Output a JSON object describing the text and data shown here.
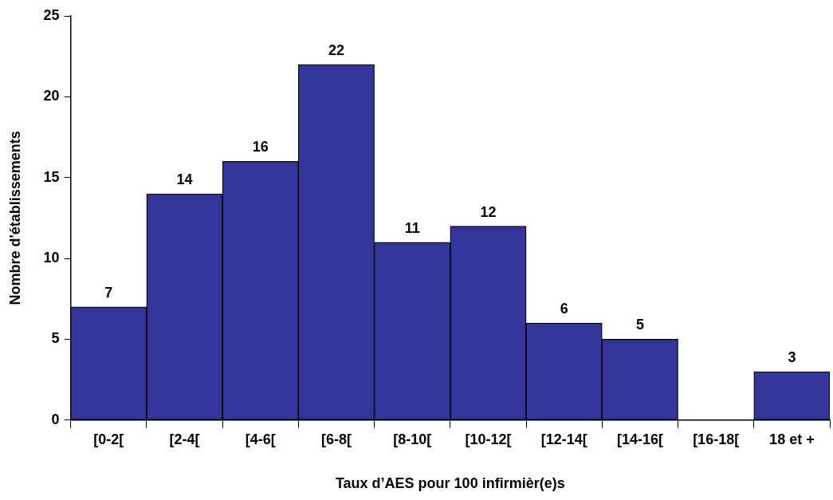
{
  "chart_data": {
    "type": "bar",
    "xlabel": "Taux d’AES pour 100 infirmièr(e)s",
    "ylabel": "Nombre d'établissements",
    "categories": [
      "[0-2[",
      "[2-4[",
      "[4-6[",
      "[6-8[",
      "[8-10[",
      "[10-12[",
      "[12-14[",
      "[14-16[",
      "[16-18[",
      "18 et +"
    ],
    "values": [
      7,
      14,
      16,
      22,
      11,
      12,
      6,
      5,
      null,
      3
    ],
    "color": "#33359a",
    "ylim": [
      0,
      25
    ],
    "yticks": [
      0,
      5,
      10,
      15,
      20,
      25
    ],
    "grid": false,
    "legend": false,
    "data_labels": true
  }
}
